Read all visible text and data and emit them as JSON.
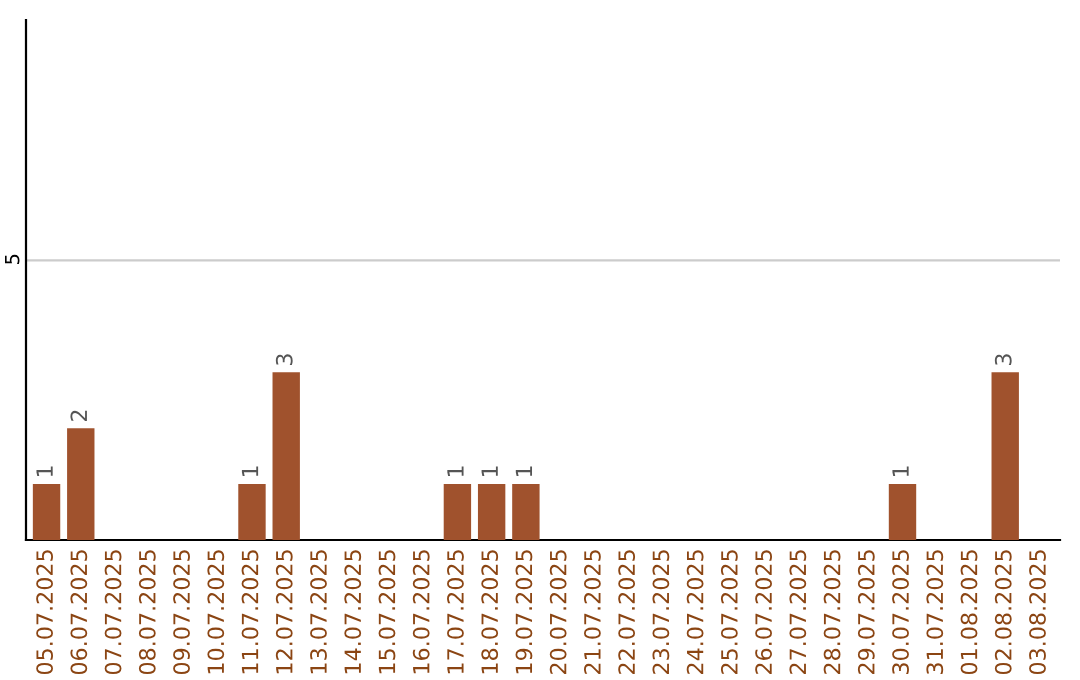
{
  "chart_data": {
    "type": "bar",
    "categories": [
      "05.07.2025",
      "06.07.2025",
      "07.07.2025",
      "08.07.2025",
      "09.07.2025",
      "10.07.2025",
      "11.07.2025",
      "12.07.2025",
      "13.07.2025",
      "14.07.2025",
      "15.07.2025",
      "16.07.2025",
      "17.07.2025",
      "18.07.2025",
      "19.07.2025",
      "20.07.2025",
      "21.07.2025",
      "22.07.2025",
      "23.07.2025",
      "24.07.2025",
      "25.07.2025",
      "26.07.2025",
      "27.07.2025",
      "28.07.2025",
      "29.07.2025",
      "30.07.2025",
      "31.07.2025",
      "01.08.2025",
      "02.08.2025",
      "03.08.2025"
    ],
    "values": [
      1,
      2,
      0,
      0,
      0,
      0,
      1,
      3,
      0,
      0,
      0,
      0,
      1,
      1,
      1,
      0,
      0,
      0,
      0,
      0,
      0,
      0,
      0,
      0,
      0,
      1,
      0,
      0,
      3,
      0
    ],
    "value_labels": [
      "1",
      "2",
      null,
      null,
      null,
      null,
      "1",
      "3",
      null,
      null,
      null,
      null,
      "1",
      "1",
      "1",
      null,
      null,
      null,
      null,
      null,
      null,
      null,
      null,
      null,
      null,
      "1",
      null,
      null,
      "3",
      null
    ],
    "color": "#a0522d",
    "ylim": [
      0,
      9.3
    ],
    "yticks": [
      5
    ],
    "grid": "y"
  }
}
